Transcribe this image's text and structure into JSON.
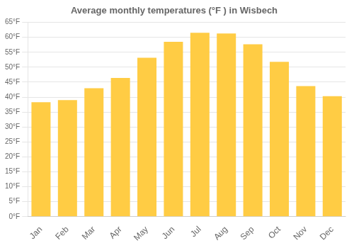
{
  "chart_data": {
    "type": "bar",
    "title": "Average monthly temperatures (°F ) in Wisbech",
    "categories": [
      "Jan",
      "Feb",
      "Mar",
      "Apr",
      "May",
      "Jun",
      "Jul",
      "Aug",
      "Sep",
      "Oct",
      "Nov",
      "Dec"
    ],
    "values": [
      38.3,
      39.0,
      43.0,
      46.4,
      53.2,
      58.5,
      61.5,
      61.3,
      57.7,
      51.8,
      43.7,
      40.3
    ],
    "color": "#FFCC44",
    "ylim": [
      0,
      65
    ],
    "yticks": [
      {
        "value": 0,
        "label": "0°F"
      },
      {
        "value": 5,
        "label": "5°F"
      },
      {
        "value": 10,
        "label": "10°F"
      },
      {
        "value": 15,
        "label": "15°F"
      },
      {
        "value": 20,
        "label": "20°F"
      },
      {
        "value": 25,
        "label": "25°F"
      },
      {
        "value": 30,
        "label": "30°F"
      },
      {
        "value": 35,
        "label": "35°F"
      },
      {
        "value": 40,
        "label": "40°F"
      },
      {
        "value": 45,
        "label": "45°F"
      },
      {
        "value": 50,
        "label": "50°F"
      },
      {
        "value": 55,
        "label": "55°F"
      },
      {
        "value": 60,
        "label": "60°F"
      },
      {
        "value": 65,
        "label": "65°F"
      }
    ],
    "grid": true
  }
}
